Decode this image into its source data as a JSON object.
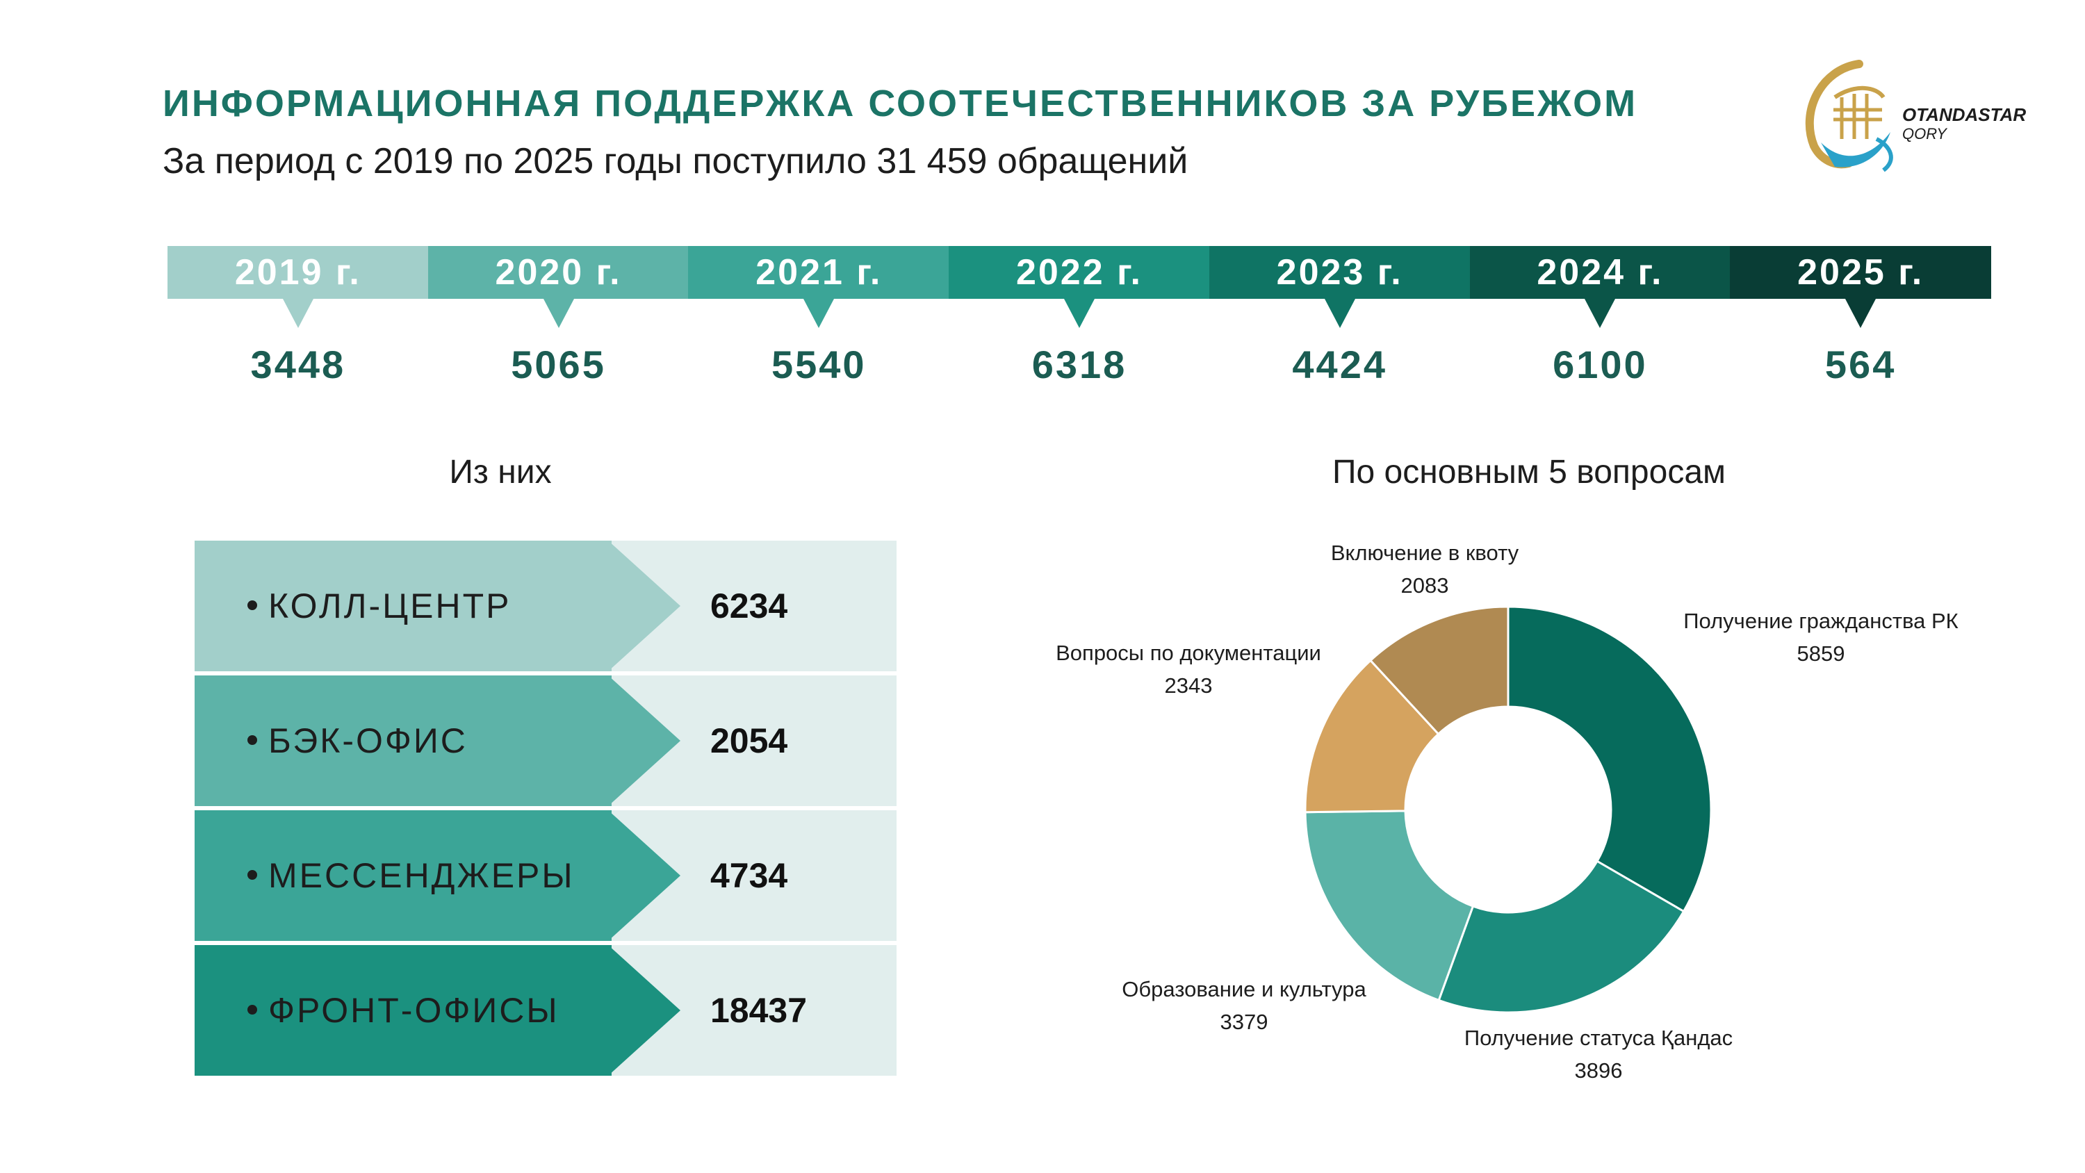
{
  "header": {
    "title": "ИНФОРМАЦИОННАЯ ПОДДЕРЖКА СООТЕЧЕСТВЕННИКОВ ЗА РУБЕЖОМ",
    "subtitle": "За период с 2019 по 2025 годы поступило 31 459 обращений"
  },
  "logo": {
    "line1": "OTANDASTAR",
    "line2": "QORY"
  },
  "colors": {
    "title": "#1b7466",
    "years": [
      "#a2cfca",
      "#5db3a8",
      "#3ba597",
      "#1b917f",
      "#0f7464",
      "#0b5548",
      "#093d35"
    ],
    "channels": [
      "#a2cfca",
      "#5db3a8",
      "#3ba597",
      "#1b917f"
    ],
    "donut": [
      "#066b5c",
      "#1b8c7d",
      "#5ab3a7",
      "#d5a35f",
      "#b08a52"
    ]
  },
  "timeline": {
    "years": [
      {
        "label": "2019 г.",
        "value": "3448"
      },
      {
        "label": "2020 г.",
        "value": "5065"
      },
      {
        "label": "2021 г.",
        "value": "5540"
      },
      {
        "label": "2022 г.",
        "value": "6318"
      },
      {
        "label": "2023 г.",
        "value": "4424"
      },
      {
        "label": "2024 г.",
        "value": "6100"
      },
      {
        "label": "2025 г.",
        "value": "564"
      }
    ]
  },
  "sections": {
    "left": "Из них",
    "right": "По основным 5 вопросам"
  },
  "channels": {
    "items": [
      {
        "label": "КОЛЛ-ЦЕНТР",
        "value": "6234"
      },
      {
        "label": "БЭК-ОФИС",
        "value": "2054"
      },
      {
        "label": "МЕССЕНДЖЕРЫ",
        "value": "4734"
      },
      {
        "label": "ФРОНТ-ОФИСЫ",
        "value": "18437"
      }
    ]
  },
  "chart_data": [
    {
      "type": "bar",
      "categories": [
        "2019 г.",
        "2020 г.",
        "2021 г.",
        "2022 г.",
        "2023 г.",
        "2024 г.",
        "2025 г."
      ],
      "values": [
        3448,
        5065,
        5540,
        6318,
        4424,
        6100,
        564
      ],
      "title": "",
      "total": 31459
    },
    {
      "type": "table",
      "categories": [
        "КОЛЛ-ЦЕНТР",
        "БЭК-ОФИС",
        "МЕССЕНДЖЕРЫ",
        "ФРОНТ-ОФИСЫ"
      ],
      "values": [
        6234,
        2054,
        4734,
        18437
      ],
      "title": "Из них"
    },
    {
      "type": "pie",
      "donut": true,
      "title": "По основным 5 вопросам",
      "categories": [
        "Получение гражданства РК",
        "Получение статуса Қандас",
        "Образование и культура",
        "Вопросы по документации",
        "Включение в квоту"
      ],
      "values": [
        5859,
        3896,
        3379,
        2343,
        2083
      ],
      "labels": [
        "5859",
        "3896",
        "3379",
        "2343",
        "2083"
      ]
    }
  ]
}
